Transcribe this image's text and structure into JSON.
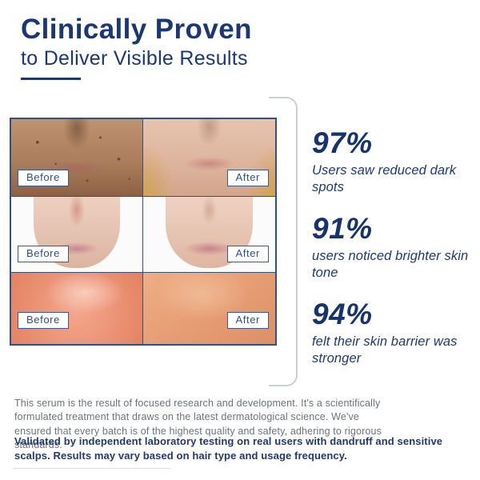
{
  "header": {
    "title": "Clinically Proven",
    "subtitle": "to Deliver Visible Results"
  },
  "colors": {
    "heading_navy": "#1b3874",
    "stat_navy": "#16336b",
    "label_navy": "#2d4f8e",
    "grid_border_navy": "#33517e",
    "paragraph_gray": "#6d7379",
    "bracket_gray": "#cbcfd4"
  },
  "comparison_grid": {
    "rows": [
      {
        "subject": "dark-spots-face",
        "before_label": "Before",
        "after_label": "After"
      },
      {
        "subject": "skin-tone-face",
        "before_label": "Before",
        "after_label": "After"
      },
      {
        "subject": "skin-barrier-texture",
        "before_label": "Before",
        "after_label": "After"
      }
    ]
  },
  "stats": [
    {
      "value": "97%",
      "description": "Users saw reduced dark spots"
    },
    {
      "value": "91%",
      "description": "users noticed brighter skin tone"
    },
    {
      "value": "94%",
      "description": "felt their skin barrier was stronger"
    }
  ],
  "footer": {
    "paragraph": "This serum is the result of focused research and development. It's a scientifically formulated treatment that draws on the latest dermatological science. We've ensured that every batch is of the highest quality and safety, adhering to rigorous standards.",
    "disclaimer": "Validated by independent laboratory testing on real users with dandruff and sensitive scalps. Results may vary based on hair type and usage frequency."
  }
}
